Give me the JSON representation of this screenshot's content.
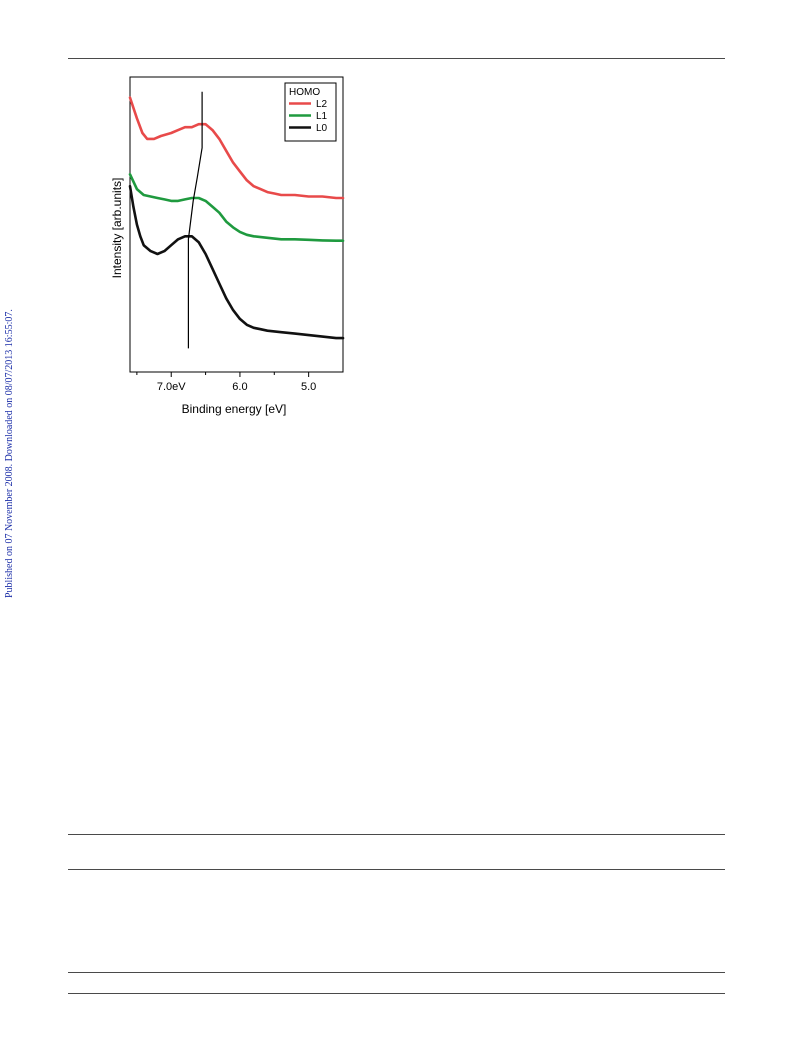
{
  "page": {
    "sidebar_text": "Published on 07 November 2008. Downloaded on 08/07/2013 16:55:07."
  },
  "chart_data": {
    "type": "line",
    "xlabel": "Binding energy [eV]",
    "ylabel": "Intensity [arb.units]",
    "xlim": [
      7.6,
      4.5
    ],
    "x_reversed": true,
    "x_ticks": [
      {
        "value": 7.0,
        "label": "7.0eV"
      },
      {
        "value": 6.0,
        "label": "6.0"
      },
      {
        "value": 5.0,
        "label": "5.0"
      }
    ],
    "y_ticks_shown": false,
    "grid": false,
    "legend": {
      "title": "HOMO",
      "placement": "top-right",
      "entries": [
        "L2",
        "L1",
        "L0"
      ]
    },
    "series": [
      {
        "name": "L2",
        "color": "#e84a4a",
        "x": [
          7.6,
          7.5,
          7.42,
          7.35,
          7.25,
          7.15,
          7.0,
          6.9,
          6.8,
          6.7,
          6.6,
          6.5,
          6.4,
          6.3,
          6.2,
          6.1,
          6.0,
          5.9,
          5.8,
          5.7,
          5.6,
          5.5,
          5.4,
          5.2,
          5.0,
          4.8,
          4.6,
          4.5
        ],
        "y": [
          0.93,
          0.86,
          0.81,
          0.79,
          0.79,
          0.8,
          0.81,
          0.82,
          0.83,
          0.83,
          0.84,
          0.84,
          0.82,
          0.79,
          0.75,
          0.71,
          0.68,
          0.65,
          0.63,
          0.62,
          0.61,
          0.605,
          0.6,
          0.6,
          0.595,
          0.595,
          0.59,
          0.59
        ]
      },
      {
        "name": "L1",
        "color": "#1f9a3f",
        "x": [
          7.6,
          7.5,
          7.4,
          7.3,
          7.2,
          7.1,
          7.0,
          6.9,
          6.8,
          6.7,
          6.6,
          6.5,
          6.4,
          6.3,
          6.2,
          6.1,
          6.0,
          5.9,
          5.8,
          5.6,
          5.4,
          5.2,
          5.0,
          4.8,
          4.6,
          4.5
        ],
        "y": [
          0.67,
          0.62,
          0.6,
          0.595,
          0.59,
          0.585,
          0.58,
          0.58,
          0.585,
          0.59,
          0.59,
          0.58,
          0.56,
          0.54,
          0.51,
          0.49,
          0.475,
          0.465,
          0.46,
          0.455,
          0.45,
          0.45,
          0.448,
          0.446,
          0.445,
          0.445
        ]
      },
      {
        "name": "L0",
        "color": "#111111",
        "x": [
          7.6,
          7.55,
          7.5,
          7.45,
          7.4,
          7.3,
          7.2,
          7.1,
          7.0,
          6.9,
          6.8,
          6.7,
          6.6,
          6.5,
          6.4,
          6.3,
          6.2,
          6.1,
          6.0,
          5.9,
          5.8,
          5.7,
          5.6,
          5.4,
          5.2,
          5.0,
          4.8,
          4.6,
          4.5
        ],
        "y": [
          0.63,
          0.56,
          0.5,
          0.46,
          0.43,
          0.41,
          0.4,
          0.41,
          0.43,
          0.45,
          0.46,
          0.46,
          0.44,
          0.4,
          0.35,
          0.3,
          0.25,
          0.21,
          0.18,
          0.16,
          0.15,
          0.145,
          0.14,
          0.135,
          0.13,
          0.125,
          0.12,
          0.115,
          0.115
        ]
      }
    ],
    "annotation_line": {
      "x": [
        6.75,
        6.75,
        6.68,
        6.62,
        6.55,
        6.55
      ],
      "y": [
        0.08,
        0.45,
        0.58,
        0.66,
        0.76,
        0.95
      ]
    }
  }
}
